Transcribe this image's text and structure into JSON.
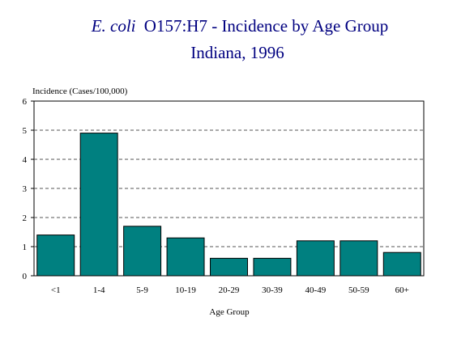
{
  "chart_data": {
    "type": "bar",
    "title_italic": "E. coli",
    "title_rest": "O157:H7 - Incidence by Age Group",
    "subtitle": "Indiana, 1996",
    "ylabel": "Incidence (Cases/100,000)",
    "xlabel": "Age Group",
    "categories": [
      "<1",
      "1-4",
      "5-9",
      "10-19",
      "20-29",
      "30-39",
      "40-49",
      "50-59",
      "60+"
    ],
    "values": [
      1.4,
      4.9,
      1.7,
      1.3,
      0.6,
      0.6,
      1.2,
      1.2,
      0.8
    ],
    "ylim": [
      0,
      6
    ],
    "yticks": [
      "0",
      "1",
      "2",
      "3",
      "4",
      "5",
      "6"
    ],
    "grid": true,
    "bar_color": "#008080",
    "title_color": "#000080"
  }
}
